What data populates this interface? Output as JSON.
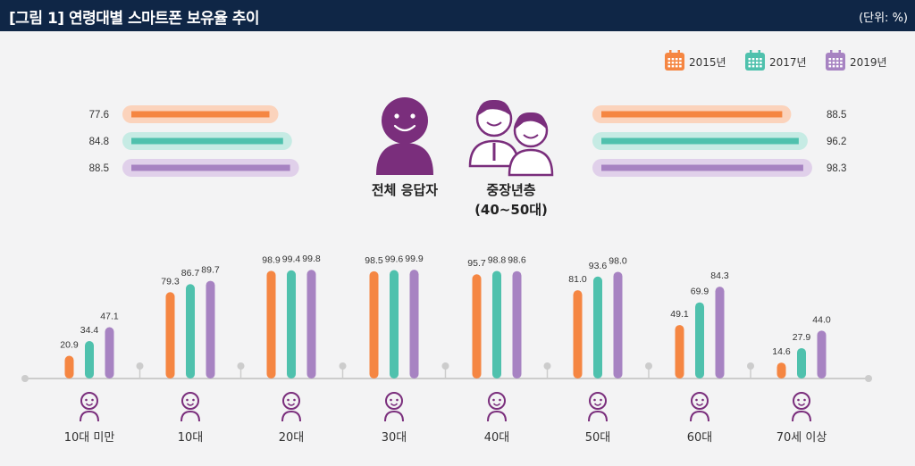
{
  "header": {
    "title": "[그림 1]  연령대별 스마트폰 보유율 추이",
    "unit": "(단위: %)"
  },
  "colors": {
    "y2015": "#f58642",
    "y2017": "#4fc1ad",
    "y2019": "#a783c2",
    "figure": "#7a2e7c"
  },
  "chart_data": [
    {
      "type": "bar",
      "orientation": "horizontal",
      "categories": [
        "2015년",
        "2017년",
        "2019년"
      ],
      "groups": [
        {
          "label": "전체 응답자",
          "values": [
            77.6,
            84.8,
            88.5
          ]
        },
        {
          "label": "중장년층",
          "sublabel": "(40~50대)",
          "values": [
            88.5,
            96.2,
            98.3
          ]
        }
      ],
      "xlim": [
        0,
        100
      ]
    },
    {
      "type": "bar",
      "categories": [
        "10대 미만",
        "10대",
        "20대",
        "30대",
        "40대",
        "50대",
        "60대",
        "70세 이상"
      ],
      "series": [
        {
          "name": "2015년",
          "values": [
            20.9,
            79.3,
            98.9,
            98.5,
            95.7,
            81.0,
            49.1,
            14.6
          ]
        },
        {
          "name": "2017년",
          "values": [
            34.4,
            86.7,
            99.4,
            99.6,
            98.8,
            93.6,
            69.9,
            27.9
          ]
        },
        {
          "name": "2019년",
          "values": [
            47.1,
            89.7,
            99.8,
            99.9,
            98.6,
            98.0,
            84.3,
            44.0
          ]
        }
      ],
      "ylim": [
        0,
        100
      ],
      "legend": "top-right"
    }
  ]
}
